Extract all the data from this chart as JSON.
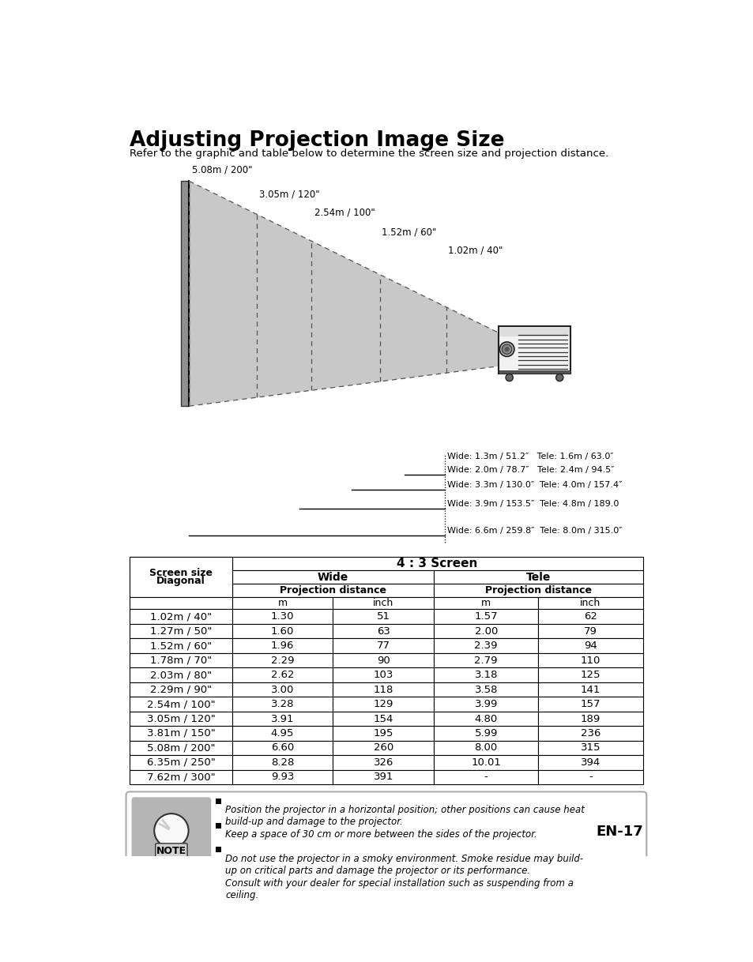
{
  "title": "Adjusting Projection Image Size",
  "subtitle": "Refer to the graphic and table below to determine the screen size and projection distance.",
  "bg_color": "#ffffff",
  "diagram": {
    "screen_labels": [
      "5.08m / 200\"",
      "3.05m / 120\"",
      "2.54m / 100\"",
      "1.52m / 60\"",
      "1.02m / 40\""
    ],
    "distance_labels": [
      "Wide: 1.3m / 51.2″   Tele: 1.6m / 63.0″",
      "Wide: 2.0m / 78.7″   Tele: 2.4m / 94.5″",
      "Wide: 3.3m / 130.0″  Tele: 4.0m / 157.4″",
      "Wide: 3.9m / 153.5″  Tele: 4.8m / 189.0",
      "Wide: 6.6m / 259.8″  Tele: 8.0m / 315.0″"
    ]
  },
  "table": {
    "header1": "4 : 3 Screen",
    "rows": [
      [
        "1.02m / 40\"",
        "1.30",
        "51",
        "1.57",
        "62"
      ],
      [
        "1.27m / 50\"",
        "1.60",
        "63",
        "2.00",
        "79"
      ],
      [
        "1.52m / 60\"",
        "1.96",
        "77",
        "2.39",
        "94"
      ],
      [
        "1.78m / 70\"",
        "2.29",
        "90",
        "2.79",
        "110"
      ],
      [
        "2.03m / 80\"",
        "2.62",
        "103",
        "3.18",
        "125"
      ],
      [
        "2.29m / 90\"",
        "3.00",
        "118",
        "3.58",
        "141"
      ],
      [
        "2.54m / 100\"",
        "3.28",
        "129",
        "3.99",
        "157"
      ],
      [
        "3.05m / 120\"",
        "3.91",
        "154",
        "4.80",
        "189"
      ],
      [
        "3.81m / 150\"",
        "4.95",
        "195",
        "5.99",
        "236"
      ],
      [
        "5.08m / 200\"",
        "6.60",
        "260",
        "8.00",
        "315"
      ],
      [
        "6.35m / 250\"",
        "8.28",
        "326",
        "10.01",
        "394"
      ],
      [
        "7.62m / 300\"",
        "9.93",
        "391",
        "-",
        "-"
      ]
    ]
  },
  "notes": [
    "Position the projector in a horizontal position; other positions can cause heat\nbuild-up and damage to the projector.",
    "Keep a space of 30 cm or more between the sides of the projector.",
    "Do not use the projector in a smoky environment. Smoke residue may build-\nup on critical parts and damage the projector or its performance.",
    "Consult with your dealer for special installation such as suspending from a\nceiling."
  ],
  "page_num": "EN-17"
}
